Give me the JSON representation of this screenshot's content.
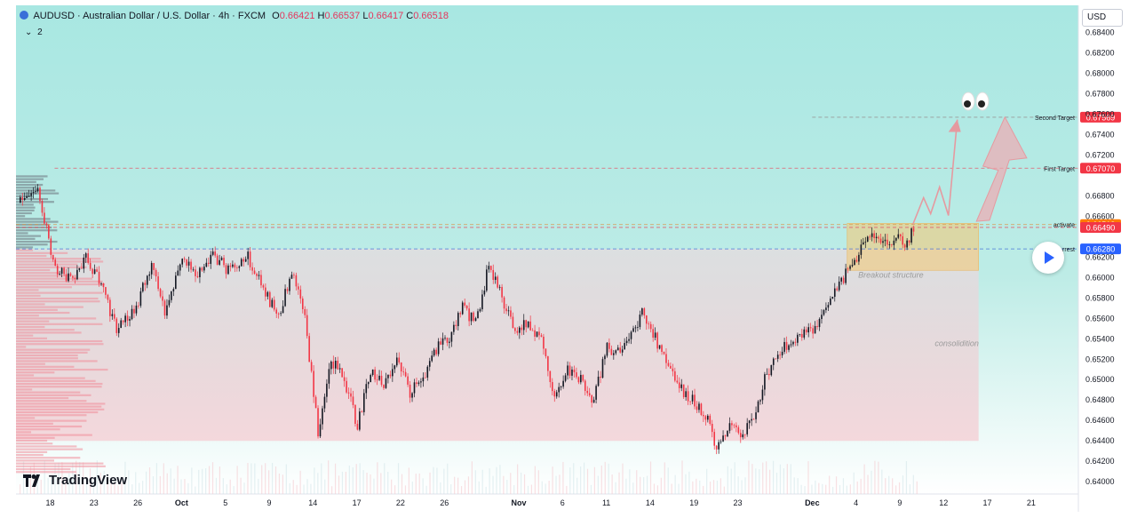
{
  "header": {
    "symbol": "AUDUSD · Australian Dollar / U.S. Dollar · 4h · FXCM",
    "o_label": "O",
    "o_value": "0.66421",
    "h_label": "H",
    "h_value": "0.66537",
    "l_label": "L",
    "l_value": "0.66417",
    "c_label": "C",
    "c_value": "0.66518",
    "indicator_count": "2"
  },
  "currency_button": "USD",
  "brand": "TradingView",
  "chart_data": {
    "type": "candlestick",
    "y_axis": {
      "range": [
        0.6388,
        0.6856
      ],
      "ticks": [
        "0.68400",
        "0.68200",
        "0.68000",
        "0.67800",
        "0.67600",
        "0.67400",
        "0.67200",
        "0.66800",
        "0.66600",
        "0.66200",
        "0.66000",
        "0.65800",
        "0.65600",
        "0.65400",
        "0.65200",
        "0.65000",
        "0.64800",
        "0.64600",
        "0.64400",
        "0.64200",
        "0.64000"
      ]
    },
    "x_axis": {
      "ticks": [
        {
          "label": "18",
          "bar": 14
        },
        {
          "label": "23",
          "bar": 34
        },
        {
          "label": "26",
          "bar": 54
        },
        {
          "label": "Oct",
          "bar": 74,
          "bold": true
        },
        {
          "label": "5",
          "bar": 94
        },
        {
          "label": "9",
          "bar": 114
        },
        {
          "label": "14",
          "bar": 134
        },
        {
          "label": "17",
          "bar": 154
        },
        {
          "label": "22",
          "bar": 174
        },
        {
          "label": "26",
          "bar": 194
        },
        {
          "label": "Nov",
          "bar": 228,
          "bold": true
        },
        {
          "label": "6",
          "bar": 248
        },
        {
          "label": "11",
          "bar": 268
        },
        {
          "label": "14",
          "bar": 288
        },
        {
          "label": "19",
          "bar": 308
        },
        {
          "label": "23",
          "bar": 328
        },
        {
          "label": "Dec",
          "bar": 362,
          "bold": true
        },
        {
          "label": "4",
          "bar": 382
        },
        {
          "label": "9",
          "bar": 402
        },
        {
          "label": "12",
          "bar": 422
        },
        {
          "label": "17",
          "bar": 442
        },
        {
          "label": "21",
          "bar": 462
        }
      ]
    },
    "path": [
      {
        "bar": 0,
        "price": 0.6673
      },
      {
        "bar": 8,
        "price": 0.6688
      },
      {
        "bar": 16,
        "price": 0.6608
      },
      {
        "bar": 24,
        "price": 0.6597
      },
      {
        "bar": 30,
        "price": 0.662
      },
      {
        "bar": 36,
        "price": 0.6598
      },
      {
        "bar": 44,
        "price": 0.655
      },
      {
        "bar": 52,
        "price": 0.6567
      },
      {
        "bar": 60,
        "price": 0.6612
      },
      {
        "bar": 66,
        "price": 0.6568
      },
      {
        "bar": 74,
        "price": 0.662
      },
      {
        "bar": 80,
        "price": 0.6604
      },
      {
        "bar": 88,
        "price": 0.6622
      },
      {
        "bar": 96,
        "price": 0.6605
      },
      {
        "bar": 104,
        "price": 0.662
      },
      {
        "bar": 112,
        "price": 0.6585
      },
      {
        "bar": 118,
        "price": 0.656
      },
      {
        "bar": 124,
        "price": 0.6608
      },
      {
        "bar": 130,
        "price": 0.6558
      },
      {
        "bar": 136,
        "price": 0.6448
      },
      {
        "bar": 142,
        "price": 0.652
      },
      {
        "bar": 148,
        "price": 0.65
      },
      {
        "bar": 154,
        "price": 0.6455
      },
      {
        "bar": 160,
        "price": 0.651
      },
      {
        "bar": 166,
        "price": 0.6492
      },
      {
        "bar": 172,
        "price": 0.652
      },
      {
        "bar": 178,
        "price": 0.6488
      },
      {
        "bar": 184,
        "price": 0.6498
      },
      {
        "bar": 190,
        "price": 0.653
      },
      {
        "bar": 196,
        "price": 0.654
      },
      {
        "bar": 202,
        "price": 0.657
      },
      {
        "bar": 208,
        "price": 0.6555
      },
      {
        "bar": 214,
        "price": 0.6612
      },
      {
        "bar": 220,
        "price": 0.658
      },
      {
        "bar": 226,
        "price": 0.655
      },
      {
        "bar": 232,
        "price": 0.6555
      },
      {
        "bar": 238,
        "price": 0.654
      },
      {
        "bar": 244,
        "price": 0.6485
      },
      {
        "bar": 250,
        "price": 0.651
      },
      {
        "bar": 256,
        "price": 0.65
      },
      {
        "bar": 262,
        "price": 0.648
      },
      {
        "bar": 268,
        "price": 0.6532
      },
      {
        "bar": 274,
        "price": 0.6525
      },
      {
        "bar": 280,
        "price": 0.6545
      },
      {
        "bar": 284,
        "price": 0.6568
      },
      {
        "bar": 290,
        "price": 0.654
      },
      {
        "bar": 296,
        "price": 0.651
      },
      {
        "bar": 302,
        "price": 0.649
      },
      {
        "bar": 308,
        "price": 0.6478
      },
      {
        "bar": 314,
        "price": 0.646
      },
      {
        "bar": 318,
        "price": 0.6435
      },
      {
        "bar": 324,
        "price": 0.6455
      },
      {
        "bar": 330,
        "price": 0.6445
      },
      {
        "bar": 336,
        "price": 0.647
      },
      {
        "bar": 340,
        "price": 0.65
      },
      {
        "bar": 346,
        "price": 0.6528
      },
      {
        "bar": 352,
        "price": 0.6535
      },
      {
        "bar": 358,
        "price": 0.6548
      },
      {
        "bar": 364,
        "price": 0.6552
      },
      {
        "bar": 370,
        "price": 0.6575
      },
      {
        "bar": 376,
        "price": 0.66
      },
      {
        "bar": 382,
        "price": 0.6618
      },
      {
        "bar": 388,
        "price": 0.6643
      },
      {
        "bar": 394,
        "price": 0.663
      },
      {
        "bar": 400,
        "price": 0.6638
      },
      {
        "bar": 404,
        "price": 0.6632
      },
      {
        "bar": 408,
        "price": 0.6648
      }
    ],
    "levels": [
      {
        "name": "Second Target",
        "price": 0.67569,
        "label": "0.67569",
        "color": "#f23645"
      },
      {
        "name": "First Target",
        "price": 0.6707,
        "label": "0.67070",
        "color": "#f23645"
      },
      {
        "name": "activate",
        "price": 0.66518,
        "label": "0.66518",
        "color": "#ff7a00"
      },
      {
        "name": "",
        "price": 0.6649,
        "label": "0.66490",
        "color": "#f23645"
      },
      {
        "name": "p... ...rrest",
        "price": 0.6628,
        "label": "0.66280",
        "color": "#2962ff"
      }
    ],
    "annotations": [
      "Breakout structure",
      "consolidition"
    ],
    "colors": {
      "up": "#131722",
      "down": "#f23645",
      "bg_top": "#a8e7e2",
      "bg_bottom": "#ffffff"
    }
  }
}
